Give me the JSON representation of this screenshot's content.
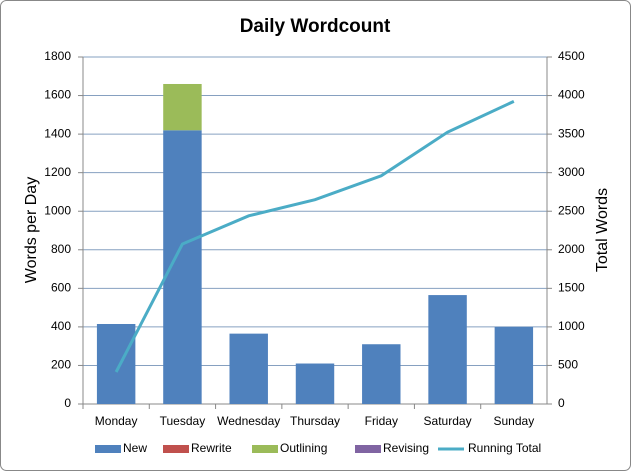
{
  "chart_data": {
    "type": "bar",
    "stacked": true,
    "title": "Daily Wordcount",
    "y_label": "Words per Day",
    "y2_label": "Total Words",
    "categories": [
      "Monday",
      "Tuesday",
      "Wednesday",
      "Thursday",
      "Friday",
      "Saturday",
      "Sunday"
    ],
    "series": [
      {
        "name": "New",
        "color": "#4f81bd",
        "type": "bar",
        "values": [
          415,
          1420,
          365,
          210,
          310,
          565,
          400
        ]
      },
      {
        "name": "Rewrite",
        "color": "#c0504d",
        "type": "bar",
        "values": [
          0,
          0,
          0,
          0,
          0,
          0,
          0
        ]
      },
      {
        "name": "Outlining",
        "color": "#9bbb59",
        "type": "bar",
        "values": [
          0,
          240,
          0,
          0,
          0,
          0,
          0
        ]
      },
      {
        "name": "Revising",
        "color": "#8064a2",
        "type": "bar",
        "values": [
          0,
          0,
          0,
          0,
          0,
          0,
          0
        ]
      },
      {
        "name": "Running Total",
        "color": "#4bacc6",
        "type": "line",
        "axis": "y2",
        "values": [
          415,
          2075,
          2440,
          2650,
          2960,
          3525,
          3925
        ]
      }
    ],
    "ylim": [
      0,
      1800
    ],
    "yticks": [
      0,
      200,
      400,
      600,
      800,
      1000,
      1200,
      1400,
      1600,
      1800
    ],
    "y2lim": [
      0,
      4500
    ],
    "y2ticks": [
      0,
      500,
      1000,
      1500,
      2000,
      2500,
      3000,
      3500,
      4000,
      4500
    ],
    "grid": true,
    "legend": "bottom"
  }
}
